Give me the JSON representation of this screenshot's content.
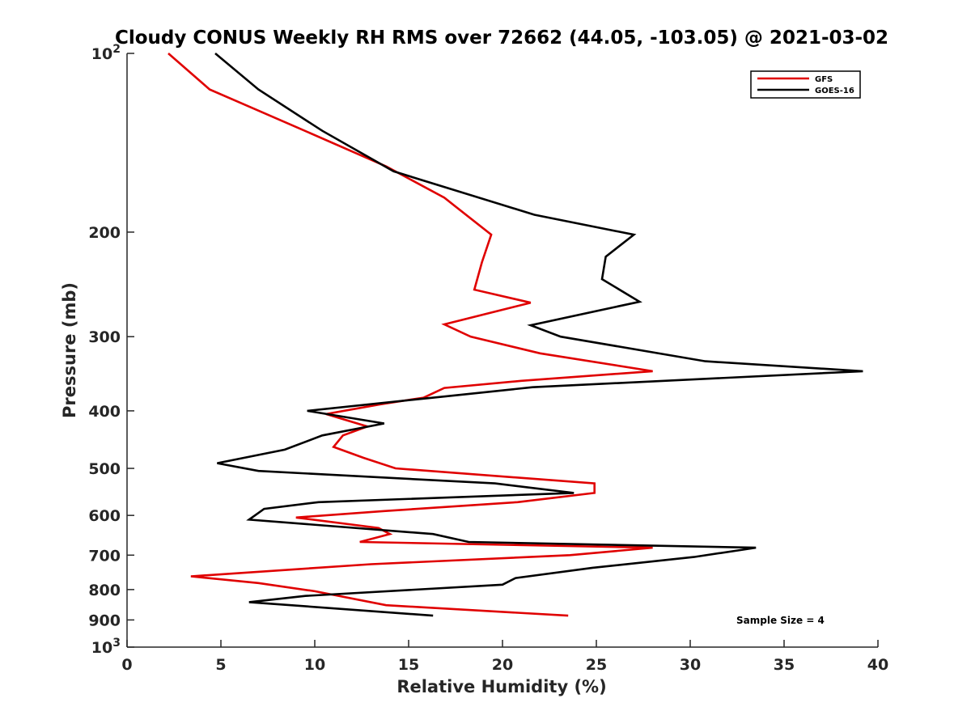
{
  "chart_data": {
    "type": "line",
    "title": "Cloudy CONUS Weekly RH RMS over 72662 (44.05, -103.05) @ 2021-03-02",
    "xlabel": "Relative Humidity (%)",
    "ylabel": "Pressure (mb)",
    "xlim": [
      0,
      40
    ],
    "ylim": [
      100,
      1000
    ],
    "y_scale": "log",
    "y_reversed": true,
    "x_ticks": [
      "0",
      "5",
      "10",
      "15",
      "20",
      "25",
      "30",
      "35",
      "40"
    ],
    "y_ticks": [
      {
        "value": 100,
        "label": "10",
        "exp": "2"
      },
      {
        "value": 200,
        "label": "200"
      },
      {
        "value": 300,
        "label": "300"
      },
      {
        "value": 400,
        "label": "400"
      },
      {
        "value": 500,
        "label": "500"
      },
      {
        "value": 600,
        "label": "600"
      },
      {
        "value": 700,
        "label": "700"
      },
      {
        "value": 800,
        "label": "800"
      },
      {
        "value": 900,
        "label": "900"
      },
      {
        "value": 1000,
        "label": "10",
        "exp": "3"
      }
    ],
    "grid": false,
    "legend_position": "top-right",
    "annotation": "Sample Size = 4",
    "series": [
      {
        "name": "GFS",
        "color": "#e00000",
        "points": [
          [
            2.2,
            100
          ],
          [
            4.4,
            115
          ],
          [
            9.0,
            133
          ],
          [
            13.8,
            155
          ],
          [
            16.9,
            175
          ],
          [
            19.4,
            202
          ],
          [
            18.9,
            225
          ],
          [
            18.5,
            250
          ],
          [
            21.5,
            263
          ],
          [
            16.9,
            286
          ],
          [
            18.3,
            300
          ],
          [
            22.0,
            320
          ],
          [
            28.0,
            343
          ],
          [
            21.0,
            356
          ],
          [
            16.9,
            366
          ],
          [
            15.8,
            380
          ],
          [
            13.5,
            390
          ],
          [
            10.6,
            405
          ],
          [
            12.8,
            425
          ],
          [
            11.5,
            440
          ],
          [
            11.0,
            460
          ],
          [
            12.6,
            480
          ],
          [
            14.3,
            500
          ],
          [
            24.9,
            530
          ],
          [
            24.9,
            550
          ],
          [
            20.8,
            570
          ],
          [
            13.7,
            590
          ],
          [
            9.0,
            605
          ],
          [
            13.4,
            630
          ],
          [
            14.0,
            645
          ],
          [
            12.4,
            665
          ],
          [
            28.0,
            680
          ],
          [
            23.6,
            700
          ],
          [
            13.0,
            725
          ],
          [
            3.4,
            760
          ],
          [
            7.0,
            780
          ],
          [
            10.0,
            805
          ],
          [
            13.8,
            850
          ],
          [
            23.5,
            885
          ]
        ]
      },
      {
        "name": "GOES-16",
        "color": "#000000",
        "points": [
          [
            4.7,
            100
          ],
          [
            7.0,
            115
          ],
          [
            10.4,
            135
          ],
          [
            14.2,
            158
          ],
          [
            21.7,
            187
          ],
          [
            27.0,
            202
          ],
          [
            25.5,
            220
          ],
          [
            25.3,
            240
          ],
          [
            27.3,
            262
          ],
          [
            21.5,
            287
          ],
          [
            23.1,
            300
          ],
          [
            30.8,
            330
          ],
          [
            39.2,
            343
          ],
          [
            21.6,
            365
          ],
          [
            17.0,
            378
          ],
          [
            9.6,
            400
          ],
          [
            13.7,
            420
          ],
          [
            10.4,
            440
          ],
          [
            8.4,
            465
          ],
          [
            4.8,
            490
          ],
          [
            7.0,
            505
          ],
          [
            19.6,
            530
          ],
          [
            23.8,
            550
          ],
          [
            10.2,
            570
          ],
          [
            7.3,
            585
          ],
          [
            6.5,
            610
          ],
          [
            16.3,
            645
          ],
          [
            18.2,
            665
          ],
          [
            33.5,
            680
          ],
          [
            30.2,
            705
          ],
          [
            24.8,
            735
          ],
          [
            20.7,
            765
          ],
          [
            20.0,
            785
          ],
          [
            9.5,
            820
          ],
          [
            6.5,
            840
          ],
          [
            16.3,
            885
          ]
        ]
      }
    ]
  }
}
